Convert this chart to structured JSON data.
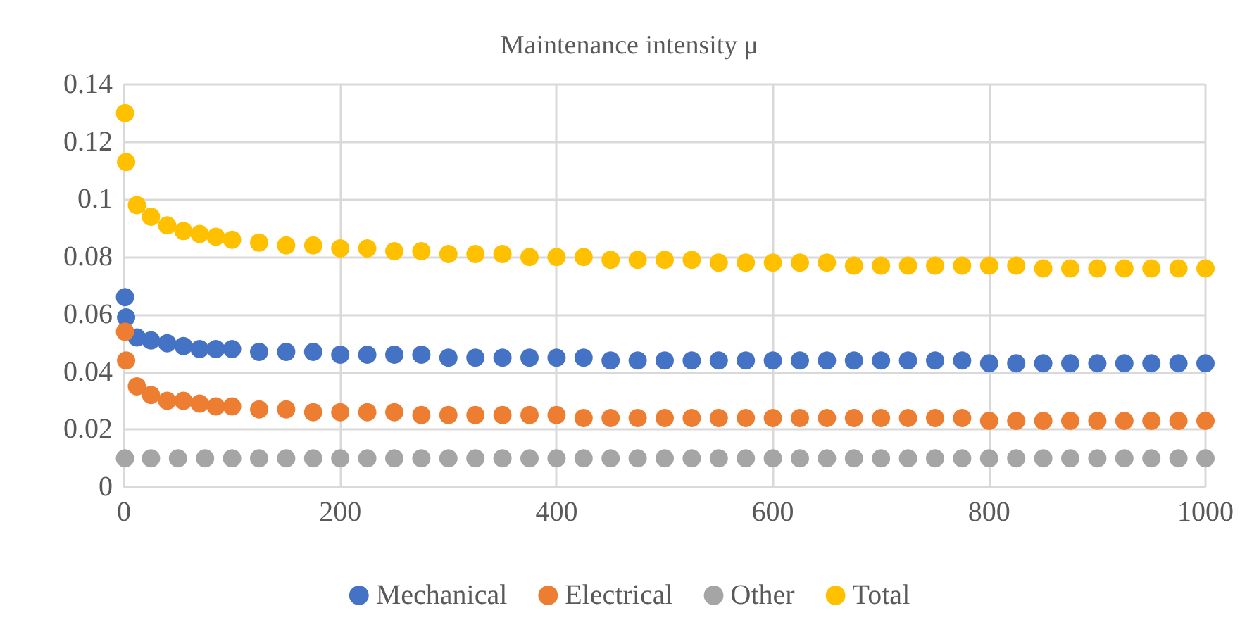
{
  "chart_data": {
    "type": "scatter",
    "title": "Maintenance intensity μ",
    "x": [
      1,
      2,
      12,
      25,
      40,
      55,
      70,
      85,
      100,
      125,
      150,
      175,
      200,
      225,
      250,
      275,
      300,
      325,
      350,
      375,
      400,
      425,
      450,
      475,
      500,
      525,
      550,
      575,
      600,
      625,
      650,
      675,
      700,
      725,
      750,
      775,
      800,
      825,
      850,
      875,
      900,
      925,
      950,
      975,
      1000
    ],
    "series": [
      {
        "name": "Mechanical",
        "color": "#4472c4",
        "values": [
          0.066,
          0.059,
          0.052,
          0.051,
          0.05,
          0.049,
          0.048,
          0.048,
          0.048,
          0.047,
          0.047,
          0.047,
          0.046,
          0.046,
          0.046,
          0.046,
          0.045,
          0.045,
          0.045,
          0.045,
          0.045,
          0.045,
          0.044,
          0.044,
          0.044,
          0.044,
          0.044,
          0.044,
          0.044,
          0.044,
          0.044,
          0.044,
          0.044,
          0.044,
          0.044,
          0.044,
          0.043,
          0.043,
          0.043,
          0.043,
          0.043,
          0.043,
          0.043,
          0.043,
          0.043
        ]
      },
      {
        "name": "Electrical",
        "color": "#ed7d31",
        "values": [
          0.054,
          0.044,
          0.035,
          0.032,
          0.03,
          0.03,
          0.029,
          0.028,
          0.028,
          0.027,
          0.027,
          0.026,
          0.026,
          0.026,
          0.026,
          0.025,
          0.025,
          0.025,
          0.025,
          0.025,
          0.025,
          0.024,
          0.024,
          0.024,
          0.024,
          0.024,
          0.024,
          0.024,
          0.024,
          0.024,
          0.024,
          0.024,
          0.024,
          0.024,
          0.024,
          0.024,
          0.023,
          0.023,
          0.023,
          0.023,
          0.023,
          0.023,
          0.023,
          0.023,
          0.023
        ]
      },
      {
        "name": "Other",
        "color": "#a5a5a5",
        "x": [
          1,
          25,
          50,
          75,
          100,
          125,
          150,
          175,
          200,
          225,
          250,
          275,
          300,
          325,
          350,
          375,
          400,
          425,
          450,
          475,
          500,
          525,
          550,
          575,
          600,
          625,
          650,
          675,
          700,
          725,
          750,
          775,
          800,
          825,
          850,
          875,
          900,
          925,
          950,
          975,
          1000
        ],
        "values": [
          0.01,
          0.01,
          0.01,
          0.01,
          0.01,
          0.01,
          0.01,
          0.01,
          0.01,
          0.01,
          0.01,
          0.01,
          0.01,
          0.01,
          0.01,
          0.01,
          0.01,
          0.01,
          0.01,
          0.01,
          0.01,
          0.01,
          0.01,
          0.01,
          0.01,
          0.01,
          0.01,
          0.01,
          0.01,
          0.01,
          0.01,
          0.01,
          0.01,
          0.01,
          0.01,
          0.01,
          0.01,
          0.01,
          0.01,
          0.01,
          0.01
        ]
      },
      {
        "name": "Total",
        "color": "#ffc000",
        "values": [
          0.13,
          0.113,
          0.098,
          0.094,
          0.091,
          0.089,
          0.088,
          0.087,
          0.086,
          0.085,
          0.084,
          0.084,
          0.083,
          0.083,
          0.082,
          0.082,
          0.081,
          0.081,
          0.081,
          0.08,
          0.08,
          0.08,
          0.079,
          0.079,
          0.079,
          0.079,
          0.078,
          0.078,
          0.078,
          0.078,
          0.078,
          0.077,
          0.077,
          0.077,
          0.077,
          0.077,
          0.077,
          0.077,
          0.076,
          0.076,
          0.076,
          0.076,
          0.076,
          0.076,
          0.076
        ]
      }
    ],
    "xlim": [
      0,
      1000
    ],
    "xticks": [
      0,
      200,
      400,
      600,
      800,
      1000
    ],
    "ylim": [
      0,
      0.14
    ],
    "yticks": [
      0,
      0.02,
      0.04,
      0.06,
      0.08,
      0.1,
      0.12,
      0.14
    ],
    "grid": true,
    "legend": "bottom",
    "marker": "circle"
  }
}
